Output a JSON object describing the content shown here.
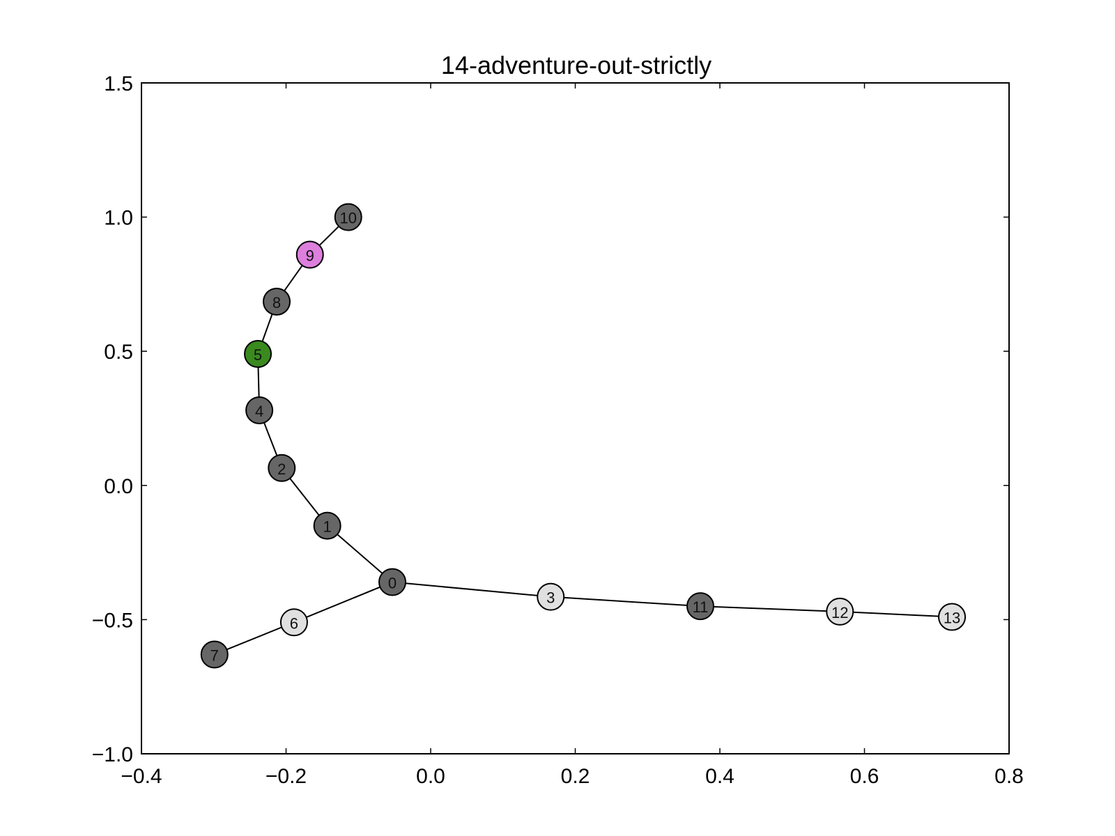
{
  "chart_data": {
    "type": "scatter",
    "title": "14-adventure-out-strictly",
    "xlabel": "",
    "ylabel": "",
    "xlim": [
      -0.4,
      0.8
    ],
    "ylim": [
      -1.0,
      1.5
    ],
    "xticks": [
      -0.4,
      -0.2,
      0.0,
      0.2,
      0.4,
      0.6,
      0.8
    ],
    "yticks": [
      -1.0,
      -0.5,
      0.0,
      0.5,
      1.0,
      1.5
    ],
    "xtick_labels": [
      "−0.4",
      "−0.2",
      "0.0",
      "0.2",
      "0.4",
      "0.6",
      "0.8"
    ],
    "ytick_labels": [
      "−1.0",
      "−0.5",
      "0.0",
      "0.5",
      "1.0",
      "1.5"
    ],
    "grid": false,
    "nodes": [
      {
        "label": "0",
        "x": -0.053,
        "y": -0.36,
        "color": "#666666"
      },
      {
        "label": "1",
        "x": -0.143,
        "y": -0.15,
        "color": "#666666"
      },
      {
        "label": "2",
        "x": -0.206,
        "y": 0.065,
        "color": "#666666"
      },
      {
        "label": "3",
        "x": 0.166,
        "y": -0.415,
        "color": "#e0e0e0"
      },
      {
        "label": "4",
        "x": -0.237,
        "y": 0.28,
        "color": "#666666"
      },
      {
        "label": "5",
        "x": -0.239,
        "y": 0.49,
        "color": "#3a8a1f"
      },
      {
        "label": "6",
        "x": -0.189,
        "y": -0.51,
        "color": "#e0e0e0"
      },
      {
        "label": "7",
        "x": -0.299,
        "y": -0.63,
        "color": "#666666"
      },
      {
        "label": "8",
        "x": -0.213,
        "y": 0.685,
        "color": "#666666"
      },
      {
        "label": "9",
        "x": -0.167,
        "y": 0.86,
        "color": "#dd7fdd"
      },
      {
        "label": "10",
        "x": -0.114,
        "y": 1.0,
        "color": "#666666"
      },
      {
        "label": "11",
        "x": 0.373,
        "y": -0.45,
        "color": "#666666"
      },
      {
        "label": "12",
        "x": 0.566,
        "y": -0.47,
        "color": "#e0e0e0"
      },
      {
        "label": "13",
        "x": 0.721,
        "y": -0.49,
        "color": "#e0e0e0"
      }
    ],
    "edges": [
      [
        "0",
        "1"
      ],
      [
        "1",
        "2"
      ],
      [
        "2",
        "4"
      ],
      [
        "4",
        "5"
      ],
      [
        "5",
        "8"
      ],
      [
        "8",
        "9"
      ],
      [
        "9",
        "10"
      ],
      [
        "0",
        "3"
      ],
      [
        "3",
        "11"
      ],
      [
        "11",
        "12"
      ],
      [
        "12",
        "13"
      ],
      [
        "0",
        "6"
      ],
      [
        "6",
        "7"
      ]
    ]
  }
}
